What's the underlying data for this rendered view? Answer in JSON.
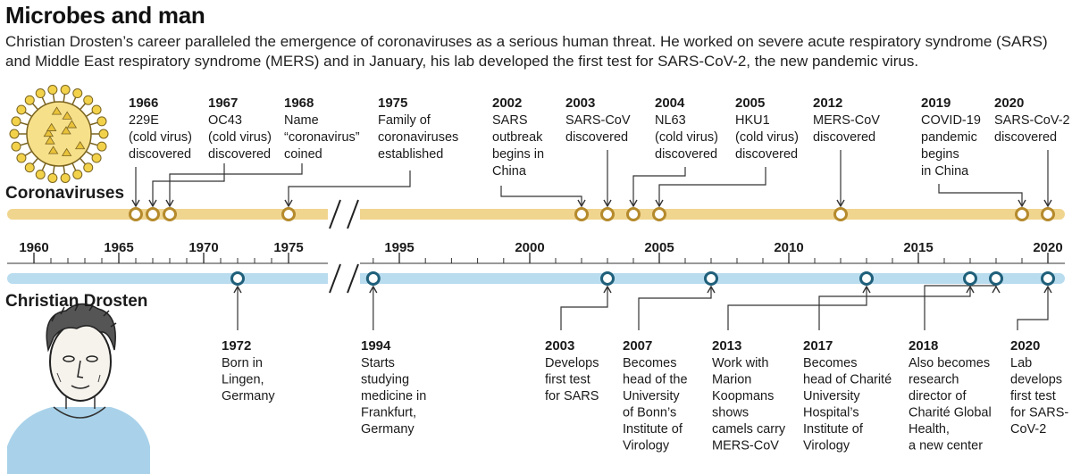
{
  "title": "Microbes and man",
  "subtitle": "Christian Drosten’s career paralleled the emergence of coronaviruses as a serious human threat. He worked on severe acute respiratory syndrome (SARS) and Middle East respiratory syndrome (MERS) and in January, his lab developed the first test for SARS-CoV-2, the new pandemic virus.",
  "colors": {
    "corona_track": "#f0d58f",
    "corona_marker": "#b58a2c",
    "drosten_track": "#b9dcef",
    "drosten_marker": "#1f5f7a",
    "leader": "#333333",
    "virus": "#f3d24b"
  },
  "tracks": {
    "coronaviruses": "Coronaviruses",
    "drosten": "Christian Drosten"
  },
  "axis": {
    "ticks": [
      "1960",
      "1965",
      "1970",
      "1975",
      "1995",
      "2000",
      "2005",
      "2010",
      "2015",
      "2020"
    ],
    "break_between": [
      "1975",
      "1995"
    ]
  },
  "coronavirus_events": [
    {
      "year": "1966",
      "lines": [
        "229E",
        "(cold virus)",
        "discovered"
      ]
    },
    {
      "year": "1967",
      "lines": [
        "OC43",
        "(cold virus)",
        "discovered"
      ]
    },
    {
      "year": "1968",
      "lines": [
        "Name",
        "“coronavirus”",
        "coined"
      ]
    },
    {
      "year": "1975",
      "lines": [
        "Family of",
        "coronaviruses",
        "established"
      ]
    },
    {
      "year": "2002",
      "lines": [
        "SARS",
        "outbreak",
        "begins in",
        "China"
      ]
    },
    {
      "year": "2003",
      "lines": [
        "SARS-CoV",
        "discovered"
      ]
    },
    {
      "year": "2004",
      "lines": [
        "NL63",
        "(cold virus)",
        "discovered"
      ]
    },
    {
      "year": "2005",
      "lines": [
        "HKU1",
        "(cold virus)",
        "discovered"
      ]
    },
    {
      "year": "2012",
      "lines": [
        "MERS-CoV",
        "discovered"
      ]
    },
    {
      "year": "2019",
      "lines": [
        "COVID-19",
        "pandemic",
        "begins",
        "in China"
      ]
    },
    {
      "year": "2020",
      "lines": [
        "SARS-CoV-2",
        "discovered"
      ]
    }
  ],
  "drosten_events": [
    {
      "year": "1972",
      "lines": [
        "Born in",
        "Lingen,",
        "Germany"
      ]
    },
    {
      "year": "1994",
      "lines": [
        "Starts",
        "studying",
        "medicine in",
        "Frankfurt,",
        "Germany"
      ]
    },
    {
      "year": "2003",
      "lines": [
        "Develops",
        "first test",
        "for SARS"
      ]
    },
    {
      "year": "2007",
      "lines": [
        "Becomes",
        "head of the",
        "University",
        "of Bonn’s",
        "Institute of",
        "Virology"
      ]
    },
    {
      "year": "2013",
      "lines": [
        "Work with",
        "Marion",
        "Koopmans",
        "shows",
        "camels carry",
        "MERS-CoV"
      ]
    },
    {
      "year": "2017",
      "lines": [
        "Becomes",
        "head of Charité",
        "University",
        "Hospital’s",
        "Institute of",
        "Virology"
      ]
    },
    {
      "year": "2018",
      "lines": [
        "Also becomes",
        "research",
        "director of",
        "Charité Global",
        "Health,",
        "a new center"
      ]
    },
    {
      "year": "2020",
      "lines": [
        "Lab",
        "develops",
        "first test",
        "for SARS-",
        "CoV-2"
      ]
    }
  ]
}
